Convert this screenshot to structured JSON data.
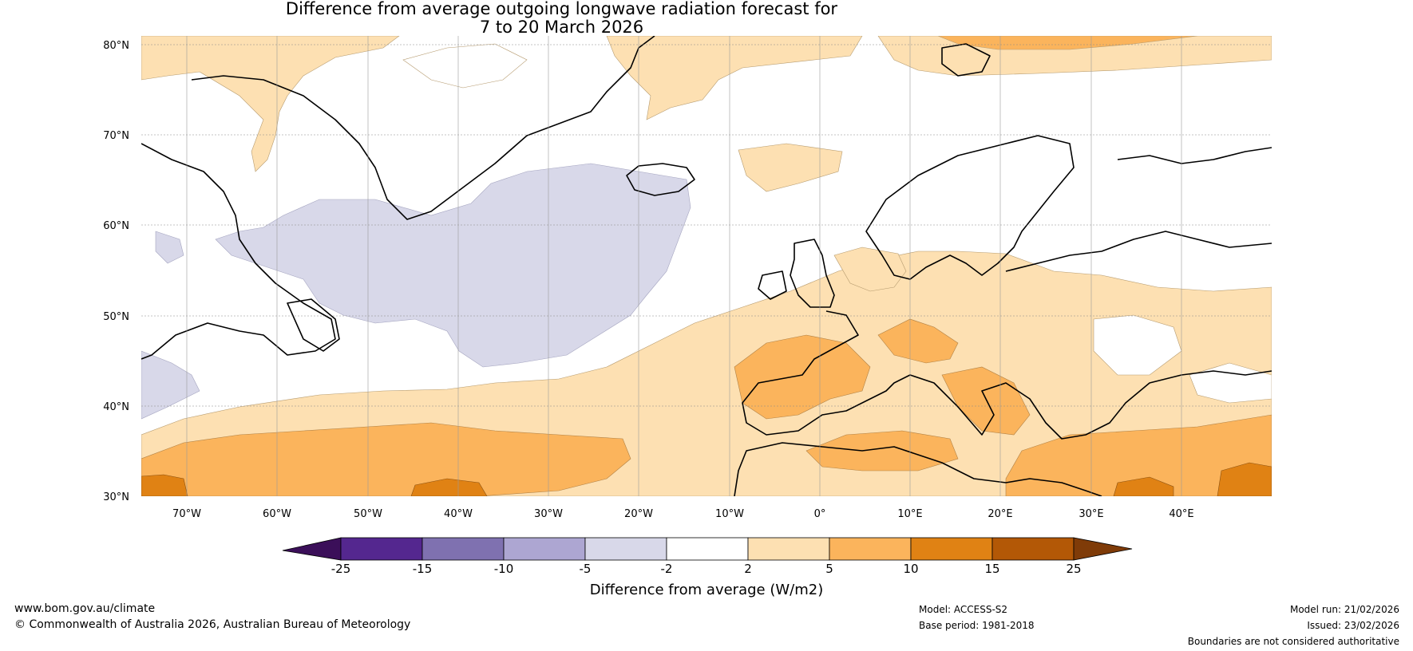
{
  "title": {
    "line1": "Difference from average outgoing longwave radiation forecast for",
    "line2": "7 to 20 March 2026"
  },
  "map": {
    "lat_labels": [
      "80°N",
      "70°N",
      "60°N",
      "50°N",
      "40°N",
      "30°N"
    ],
    "lon_labels": [
      "70°W",
      "60°W",
      "50°W",
      "40°W",
      "30°W",
      "20°W",
      "10°W",
      "0°",
      "10°E",
      "20°E",
      "30°E",
      "40°E"
    ],
    "lat_range": [
      30,
      80
    ],
    "lon_range": [
      -75,
      50
    ]
  },
  "legend": {
    "title": "Difference from average (W/m2)",
    "ticks": [
      "-25",
      "-15",
      "-10",
      "-5",
      "-2",
      "2",
      "5",
      "10",
      "15",
      "25"
    ],
    "colors": {
      "lt_-25": "#3b0f59",
      "-25_-15": "#54278f",
      "-15_-10": "#7f71b0",
      "-10_-5": "#ada6d2",
      "-5_-2": "#d8d8e9",
      "-2_2": "#ffffff",
      "2_5": "#fde0b2",
      "5_10": "#fbb45c",
      "10_15": "#e08214",
      "15_25": "#b35806",
      "gt_25": "#7f3b08"
    }
  },
  "footer": {
    "website": "www.bom.gov.au/climate",
    "copyright": "© Commonwealth of Australia 2026, Australian Bureau of Meteorology",
    "model": "Model: ACCESS-S2",
    "base_period": "Base period: 1981-2018",
    "model_run": "Model run: 21/02/2026",
    "issued": "Issued: 23/02/2026",
    "disclaimer": "Boundaries are not considered authoritative"
  }
}
